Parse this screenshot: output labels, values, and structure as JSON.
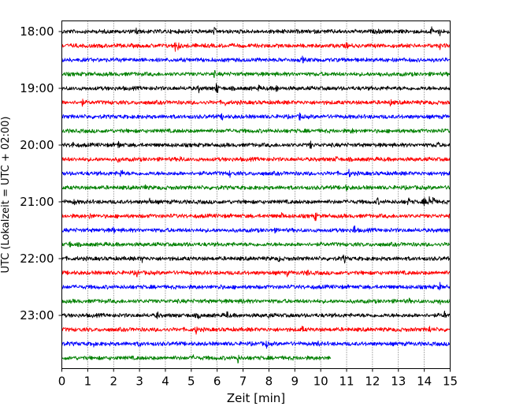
{
  "chart_data": {
    "type": "line",
    "title": "",
    "xlabel": "Zeit  [min]",
    "ylabel": "UTC (Lokalzeit = UTC + 02:00)",
    "xlim": [
      0,
      15
    ],
    "x_ticks": [
      0,
      1,
      2,
      3,
      4,
      5,
      6,
      7,
      8,
      9,
      10,
      11,
      12,
      13,
      14,
      15
    ],
    "x_tick_labels": [
      "0",
      "1",
      "2",
      "3",
      "4",
      "5",
      "6",
      "7",
      "8",
      "9",
      "10",
      "11",
      "12",
      "13",
      "14",
      "15"
    ],
    "y_tick_labels": [
      "18:00",
      "19:00",
      "20:00",
      "21:00",
      "22:00",
      "23:00"
    ],
    "grid": "vertical dotted",
    "trace_colors": [
      "#000000",
      "#ff0000",
      "#0000ff",
      "#008000"
    ],
    "traces": [
      {
        "start": "18:00",
        "color": "#000000",
        "x_end": 15,
        "events": [
          [
            2.9,
            7
          ],
          [
            5.9,
            5
          ],
          [
            8.6,
            4
          ],
          [
            12.2,
            4
          ],
          [
            14.3,
            6
          ],
          [
            14.6,
            5
          ]
        ]
      },
      {
        "start": "18:15",
        "color": "#ff0000",
        "x_end": 15,
        "events": [
          [
            4.4,
            8
          ],
          [
            4.5,
            6
          ],
          [
            11.0,
            4
          ],
          [
            14.6,
            4
          ]
        ]
      },
      {
        "start": "18:30",
        "color": "#0000ff",
        "x_end": 15,
        "events": [
          [
            9.3,
            4
          ],
          [
            12.8,
            4
          ]
        ]
      },
      {
        "start": "18:45",
        "color": "#008000",
        "x_end": 15,
        "events": [
          [
            5.9,
            4
          ],
          [
            12.3,
            4
          ]
        ]
      },
      {
        "start": "19:00",
        "color": "#000000",
        "x_end": 15,
        "events": [
          [
            6.0,
            9
          ],
          [
            5.3,
            5
          ],
          [
            8.3,
            5
          ],
          [
            7.6,
            4
          ]
        ]
      },
      {
        "start": "19:15",
        "color": "#ff0000",
        "x_end": 15,
        "events": [
          [
            0.8,
            4
          ],
          [
            6.3,
            4
          ],
          [
            12.7,
            4
          ]
        ]
      },
      {
        "start": "19:30",
        "color": "#0000ff",
        "x_end": 15,
        "events": [
          [
            6.2,
            4
          ],
          [
            9.2,
            5
          ]
        ]
      },
      {
        "start": "19:45",
        "color": "#008000",
        "x_end": 15,
        "events": [
          [
            11.2,
            4
          ]
        ]
      },
      {
        "start": "20:00",
        "color": "#000000",
        "x_end": 15,
        "events": [
          [
            0.4,
            5
          ],
          [
            2.2,
            5
          ],
          [
            9.6,
            5
          ],
          [
            14.5,
            6
          ]
        ]
      },
      {
        "start": "20:15",
        "color": "#ff0000",
        "x_end": 15,
        "events": [
          [
            2.2,
            4
          ],
          [
            4.6,
            4
          ],
          [
            10.6,
            4
          ]
        ]
      },
      {
        "start": "20:30",
        "color": "#0000ff",
        "x_end": 15,
        "events": [
          [
            2.3,
            6
          ],
          [
            6.5,
            4
          ],
          [
            11.1,
            5
          ]
        ]
      },
      {
        "start": "20:45",
        "color": "#008000",
        "x_end": 15,
        "events": [
          [
            3.2,
            4
          ],
          [
            11.0,
            4
          ]
        ]
      },
      {
        "start": "21:00",
        "color": "#000000",
        "x_end": 15,
        "events": [
          [
            0.5,
            4
          ],
          [
            3.4,
            5
          ],
          [
            12.2,
            5
          ],
          [
            13.4,
            5
          ],
          [
            14.0,
            5
          ],
          [
            14.2,
            9
          ],
          [
            14.35,
            8
          ]
        ]
      },
      {
        "start": "21:15",
        "color": "#ff0000",
        "x_end": 15,
        "events": [
          [
            1.1,
            4
          ],
          [
            8.5,
            5
          ],
          [
            9.8,
            6
          ]
        ]
      },
      {
        "start": "21:30",
        "color": "#0000ff",
        "x_end": 15,
        "events": [
          [
            2.0,
            4
          ],
          [
            8.2,
            4
          ],
          [
            11.3,
            7
          ]
        ]
      },
      {
        "start": "21:45",
        "color": "#008000",
        "x_end": 15,
        "events": [
          [
            0.3,
            4
          ],
          [
            4.8,
            4
          ]
        ]
      },
      {
        "start": "22:00",
        "color": "#000000",
        "x_end": 15,
        "events": [
          [
            3.1,
            4
          ],
          [
            8.4,
            4
          ],
          [
            10.9,
            6
          ]
        ]
      },
      {
        "start": "22:15",
        "color": "#ff0000",
        "x_end": 15,
        "events": [
          [
            2.9,
            5
          ],
          [
            8.7,
            4
          ],
          [
            9.5,
            4
          ]
        ]
      },
      {
        "start": "22:30",
        "color": "#0000ff",
        "x_end": 15,
        "events": [
          [
            6.1,
            4
          ],
          [
            14.6,
            5
          ]
        ]
      },
      {
        "start": "22:45",
        "color": "#008000",
        "x_end": 15,
        "events": [
          [
            7.0,
            5
          ],
          [
            13.4,
            4
          ],
          [
            14.6,
            4
          ]
        ]
      },
      {
        "start": "23:00",
        "color": "#000000",
        "x_end": 15,
        "events": [
          [
            3.7,
            5
          ],
          [
            6.4,
            6
          ],
          [
            5.3,
            5
          ],
          [
            8.0,
            4
          ],
          [
            14.8,
            5
          ]
        ]
      },
      {
        "start": "23:15",
        "color": "#ff0000",
        "x_end": 15,
        "events": [
          [
            5.2,
            6
          ],
          [
            9.3,
            4
          ],
          [
            14.2,
            5
          ]
        ]
      },
      {
        "start": "23:30",
        "color": "#0000ff",
        "x_end": 15,
        "events": [
          [
            1.2,
            5
          ],
          [
            3.0,
            4
          ],
          [
            7.9,
            5
          ],
          [
            9.9,
            4
          ]
        ]
      },
      {
        "start": "23:45",
        "color": "#008000",
        "x_end": 10.4,
        "events": [
          [
            6.8,
            6
          ],
          [
            5.1,
            4
          ]
        ]
      }
    ]
  }
}
